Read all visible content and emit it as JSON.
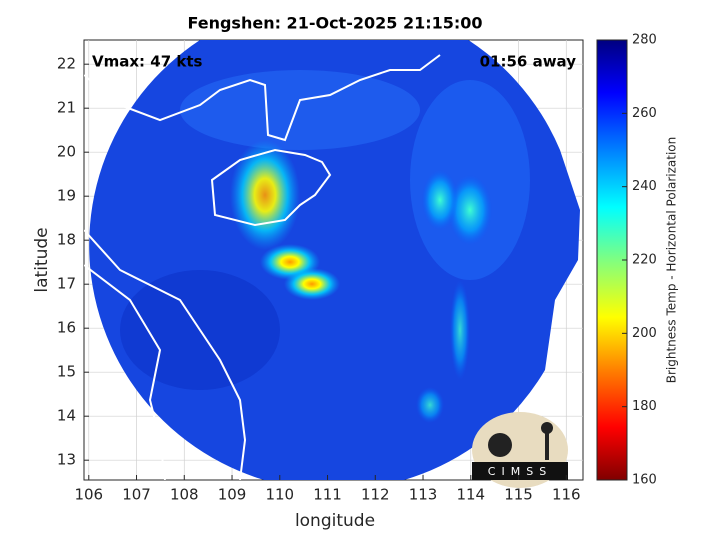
{
  "chart_data": {
    "type": "map",
    "title": "Fengshen: 21-Oct-2025 21:15:00",
    "annotations": [
      "Vmax: 47 kts",
      "01:56 away"
    ],
    "xlabel": "longitude",
    "ylabel": "latitude",
    "xlim": [
      105.9,
      116.35
    ],
    "ylim": [
      12.55,
      22.55
    ],
    "xticks": [
      106,
      107,
      108,
      109,
      110,
      111,
      112,
      113,
      114,
      115,
      116
    ],
    "yticks": [
      13,
      14,
      15,
      16,
      17,
      18,
      19,
      20,
      21,
      22
    ],
    "grid": true,
    "colorbar": {
      "label": "Brightness Temp - Horizontal Polarization",
      "lim": [
        160,
        280
      ],
      "ticks": [
        160,
        180,
        200,
        220,
        240,
        260,
        280
      ]
    },
    "logo": "CIMSS"
  }
}
